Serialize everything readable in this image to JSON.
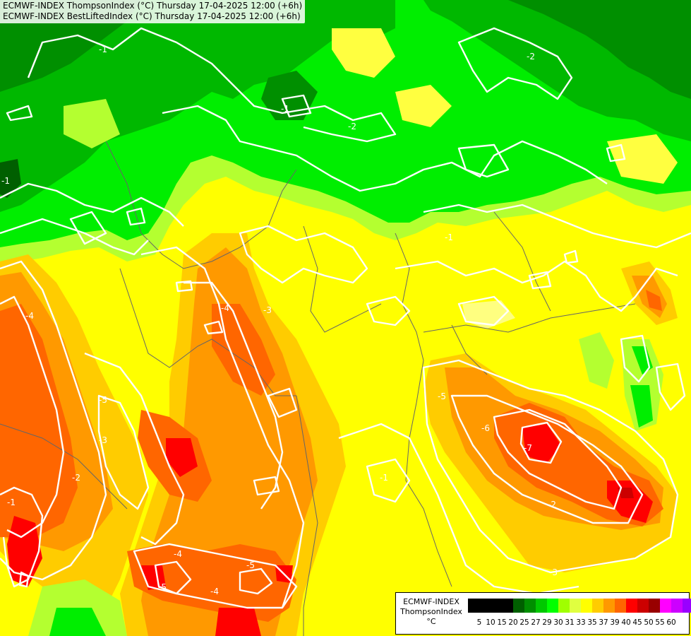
{
  "header": {
    "line1": "ECMWF-INDEX ThompsonIndex (°C) Thursday 17-04-2025 12:00 (+6h)",
    "line2": "ECMWF-INDEX BestLiftedIndex (°C) Thursday 17-04-2025 12:00 (+6h)"
  },
  "legend": {
    "model": "ECMWF-INDEX",
    "variable": "ThompsonIndex",
    "unit": "°C",
    "levels": [
      "5",
      "10",
      "15",
      "20",
      "25",
      "27",
      "29",
      "30",
      "31",
      "33",
      "35",
      "37",
      "39",
      "40",
      "45",
      "50",
      "55",
      "60"
    ],
    "colors": [
      "#000000",
      "#000000",
      "#000000",
      "#000000",
      "#005f00",
      "#008f00",
      "#00c800",
      "#00ff00",
      "#a0ff00",
      "#e0ff40",
      "#ffff00",
      "#ffcc00",
      "#ff9900",
      "#ff6600",
      "#ff0000",
      "#cc0000",
      "#990000",
      "#ff00ff",
      "#cc00ff",
      "#9900ff",
      "#0000ff"
    ]
  },
  "map": {
    "contour_labels": [
      {
        "text": "-1"
      },
      {
        "text": "-1"
      },
      {
        "text": "-2"
      },
      {
        "text": "-2"
      },
      {
        "text": "-1"
      },
      {
        "text": "-1"
      },
      {
        "text": "-4"
      },
      {
        "text": "-3"
      },
      {
        "text": "-4"
      },
      {
        "text": "-5"
      },
      {
        "text": "-5"
      },
      {
        "text": "-6"
      },
      {
        "text": "-7"
      },
      {
        "text": "-2"
      },
      {
        "text": "-3"
      },
      {
        "text": "-1"
      },
      {
        "text": "-4"
      },
      {
        "text": "-5"
      },
      {
        "text": "-5"
      },
      {
        "text": "-2"
      },
      {
        "text": "-3"
      },
      {
        "text": "-4"
      },
      {
        "text": "-1"
      }
    ]
  }
}
